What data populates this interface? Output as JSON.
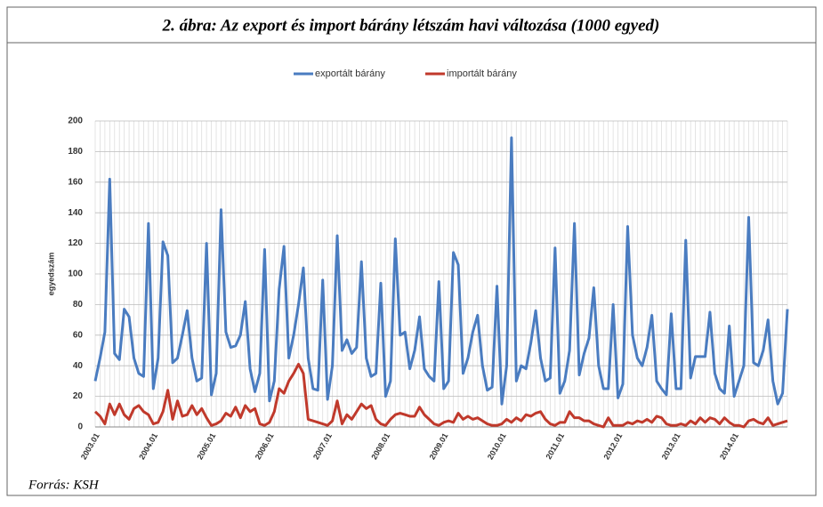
{
  "title": "2. ábra: Az export és import bárány létszám havi változása (1000 egyed)",
  "source": "Forrás: KSH",
  "chart_data": {
    "type": "line",
    "y_label": "egyedszám",
    "categories": [
      "2003.01",
      null,
      null,
      null,
      null,
      null,
      null,
      null,
      null,
      null,
      null,
      null,
      "2004.01",
      null,
      null,
      null,
      null,
      null,
      null,
      null,
      null,
      null,
      null,
      null,
      "2005.01",
      null,
      null,
      null,
      null,
      null,
      null,
      null,
      null,
      null,
      null,
      null,
      "2006.01",
      null,
      null,
      null,
      null,
      null,
      null,
      null,
      null,
      null,
      null,
      null,
      "2007.01",
      null,
      null,
      null,
      null,
      null,
      null,
      null,
      null,
      null,
      null,
      null,
      "2008.01",
      null,
      null,
      null,
      null,
      null,
      null,
      null,
      null,
      null,
      null,
      null,
      "2009.01",
      null,
      null,
      null,
      null,
      null,
      null,
      null,
      null,
      null,
      null,
      null,
      "2010.01",
      null,
      null,
      null,
      null,
      null,
      null,
      null,
      null,
      null,
      null,
      null,
      "2011.01",
      null,
      null,
      null,
      null,
      null,
      null,
      null,
      null,
      null,
      null,
      null,
      "2012.01",
      null,
      null,
      null,
      null,
      null,
      null,
      null,
      null,
      null,
      null,
      null,
      "2013.01",
      null,
      null,
      null,
      null,
      null,
      null,
      null,
      null,
      null,
      null,
      null,
      "2014.01",
      null,
      null,
      null,
      null,
      null,
      null,
      null,
      null,
      null,
      null,
      null
    ],
    "series": [
      {
        "name": "exportált bárány",
        "color": "#4a7cc0",
        "values": [
          30,
          45,
          62,
          162,
          48,
          44,
          77,
          72,
          45,
          35,
          33,
          133,
          25,
          45,
          121,
          112,
          42,
          45,
          60,
          76,
          45,
          30,
          32,
          120,
          21,
          35,
          142,
          62,
          52,
          53,
          60,
          82,
          38,
          23,
          35,
          116,
          17,
          30,
          90,
          118,
          45,
          60,
          80,
          104,
          45,
          25,
          24,
          96,
          18,
          40,
          125,
          50,
          57,
          48,
          52,
          108,
          45,
          33,
          35,
          94,
          20,
          30,
          123,
          60,
          62,
          38,
          50,
          72,
          38,
          33,
          30,
          95,
          25,
          30,
          114,
          106,
          35,
          45,
          62,
          73,
          40,
          24,
          26,
          92,
          15,
          40,
          189,
          30,
          40,
          38,
          55,
          76,
          45,
          30,
          32,
          117,
          22,
          30,
          50,
          133,
          34,
          48,
          58,
          91,
          40,
          25,
          25,
          80,
          19,
          28,
          131,
          60,
          45,
          40,
          52,
          73,
          30,
          25,
          21,
          74,
          25,
          25,
          122,
          32,
          46,
          46,
          46,
          75,
          35,
          25,
          22,
          66,
          20,
          30,
          40,
          137,
          42,
          40,
          50,
          70,
          30,
          15,
          22,
          77
        ]
      },
      {
        "name": "importált bárány",
        "color": "#c0392b",
        "values": [
          10,
          7,
          2,
          15,
          8,
          15,
          8,
          5,
          12,
          14,
          10,
          8,
          2,
          3,
          10,
          24,
          5,
          17,
          7,
          8,
          14,
          8,
          12,
          6,
          1,
          2,
          4,
          9,
          7,
          13,
          6,
          14,
          10,
          12,
          2,
          1,
          3,
          10,
          25,
          22,
          30,
          35,
          41,
          35,
          5,
          4,
          3,
          2,
          1,
          4,
          17,
          2,
          8,
          5,
          10,
          15,
          12,
          14,
          5,
          2,
          1,
          5,
          8,
          9,
          8,
          7,
          7,
          13,
          8,
          5,
          2,
          1,
          3,
          4,
          3,
          9,
          5,
          7,
          5,
          6,
          4,
          2,
          1,
          1,
          2,
          5,
          3,
          6,
          4,
          8,
          7,
          9,
          10,
          5,
          2,
          1,
          3,
          3,
          10,
          6,
          6,
          4,
          4,
          2,
          1,
          0,
          6,
          1,
          1,
          1,
          3,
          2,
          4,
          3,
          5,
          3,
          7,
          6,
          2,
          1,
          1,
          2,
          1,
          4,
          2,
          6,
          3,
          6,
          5,
          2,
          6,
          3,
          1,
          1,
          0,
          4,
          5,
          3,
          2,
          6,
          1,
          2,
          3,
          4
        ]
      }
    ],
    "ylim": [
      0,
      200
    ],
    "yticks": [
      0,
      20,
      40,
      60,
      80,
      100,
      120,
      140,
      160,
      180,
      200
    ],
    "grid": true,
    "legend": "top"
  }
}
